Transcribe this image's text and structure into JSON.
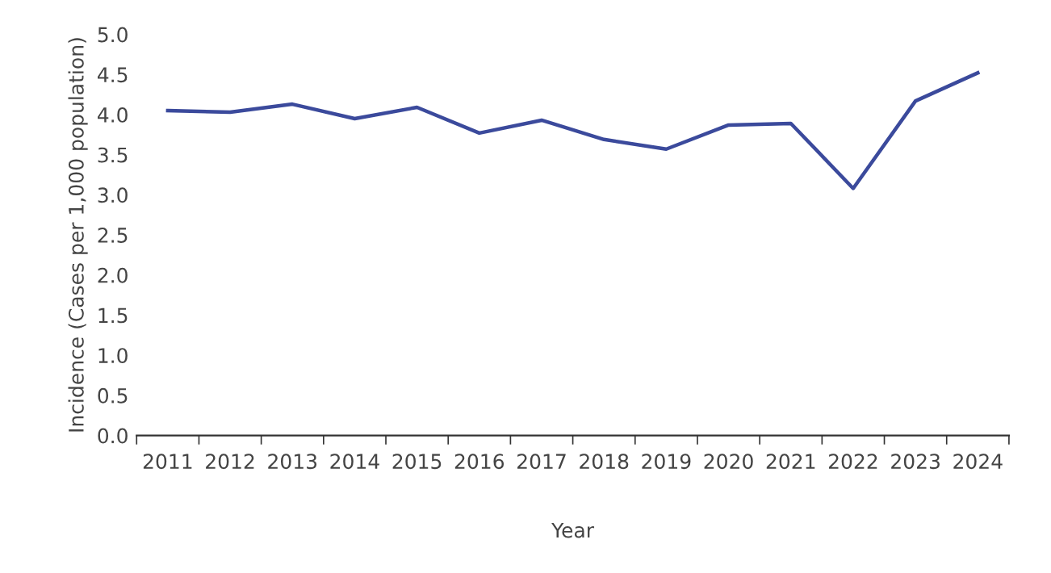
{
  "chart_data": {
    "type": "line",
    "xlabel": "Year",
    "ylabel": "Incidence (Cases per 1,000 population)",
    "categories": [
      "2011",
      "2012",
      "2013",
      "2014",
      "2015",
      "2016",
      "2017",
      "2018",
      "2019",
      "2020",
      "2021",
      "2022",
      "2023",
      "2024"
    ],
    "series": [
      {
        "color": "#3b4a9c",
        "values": [
          4.05,
          4.03,
          4.13,
          3.95,
          4.09,
          3.77,
          3.93,
          3.69,
          3.57,
          3.87,
          3.89,
          3.08,
          4.17,
          4.52
        ]
      }
    ],
    "ylim": [
      0,
      5.0
    ],
    "yticks": [
      {
        "value": 0,
        "label": "0.0"
      },
      {
        "value": 0.5,
        "label": "0.5"
      },
      {
        "value": 1,
        "label": "1.0"
      },
      {
        "value": 1.5,
        "label": "1.5"
      },
      {
        "value": 2,
        "label": "2.0"
      },
      {
        "value": 2.5,
        "label": "2.5"
      },
      {
        "value": 3,
        "label": "3.0"
      },
      {
        "value": 3.5,
        "label": "3.5"
      },
      {
        "value": 4,
        "label": "4.0"
      },
      {
        "value": 4.5,
        "label": "4.5"
      },
      {
        "value": 5,
        "label": "5.0"
      }
    ],
    "grid": false,
    "legend": false,
    "marker": "none",
    "line_style": "solid"
  }
}
